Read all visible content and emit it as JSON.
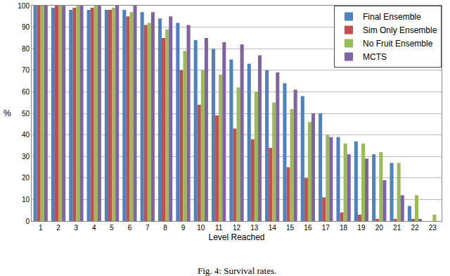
{
  "chart_data": {
    "type": "bar",
    "x_label": "Level Reached",
    "y_label": "%",
    "caption": "Fig. 4: Survival rates.",
    "categories": [
      "1",
      "2",
      "3",
      "4",
      "5",
      "6",
      "7",
      "8",
      "9",
      "10",
      "11",
      "12",
      "13",
      "14",
      "15",
      "16",
      "17",
      "18",
      "19",
      "20",
      "21",
      "22",
      "23"
    ],
    "series": [
      {
        "name": "Final Ensemble",
        "color": "#4f81bd",
        "values": [
          100,
          99,
          98,
          98,
          98,
          98,
          97,
          94,
          92,
          84,
          80,
          75,
          73,
          70,
          64,
          58,
          50,
          39,
          37,
          31,
          27,
          7,
          0
        ]
      },
      {
        "name": "Sim Only Ensemble",
        "color": "#c0504d",
        "values": [
          100,
          100,
          99,
          99,
          98,
          95,
          91,
          85,
          70,
          54,
          49,
          43,
          38,
          34,
          25,
          20,
          11,
          4,
          3,
          1,
          1,
          1,
          0
        ]
      },
      {
        "name": "No Fruit Ensemble",
        "color": "#9bbb59",
        "values": [
          100,
          100,
          100,
          100,
          99,
          97,
          92,
          89,
          79,
          70,
          68,
          62,
          60,
          55,
          52,
          46,
          40,
          36,
          36,
          32,
          27,
          12,
          3
        ]
      },
      {
        "name": "MCTS",
        "color": "#8064a2",
        "values": [
          100,
          100,
          100,
          100,
          100,
          100,
          97,
          95,
          91,
          85,
          83,
          82,
          77,
          69,
          61,
          50,
          39,
          31,
          29,
          19,
          12,
          1,
          0
        ]
      }
    ],
    "ylim": [
      0,
      100
    ],
    "yticks": [
      0,
      10,
      20,
      30,
      40,
      50,
      60,
      70,
      80,
      90,
      100
    ],
    "grid": true,
    "legend": "upper right"
  }
}
